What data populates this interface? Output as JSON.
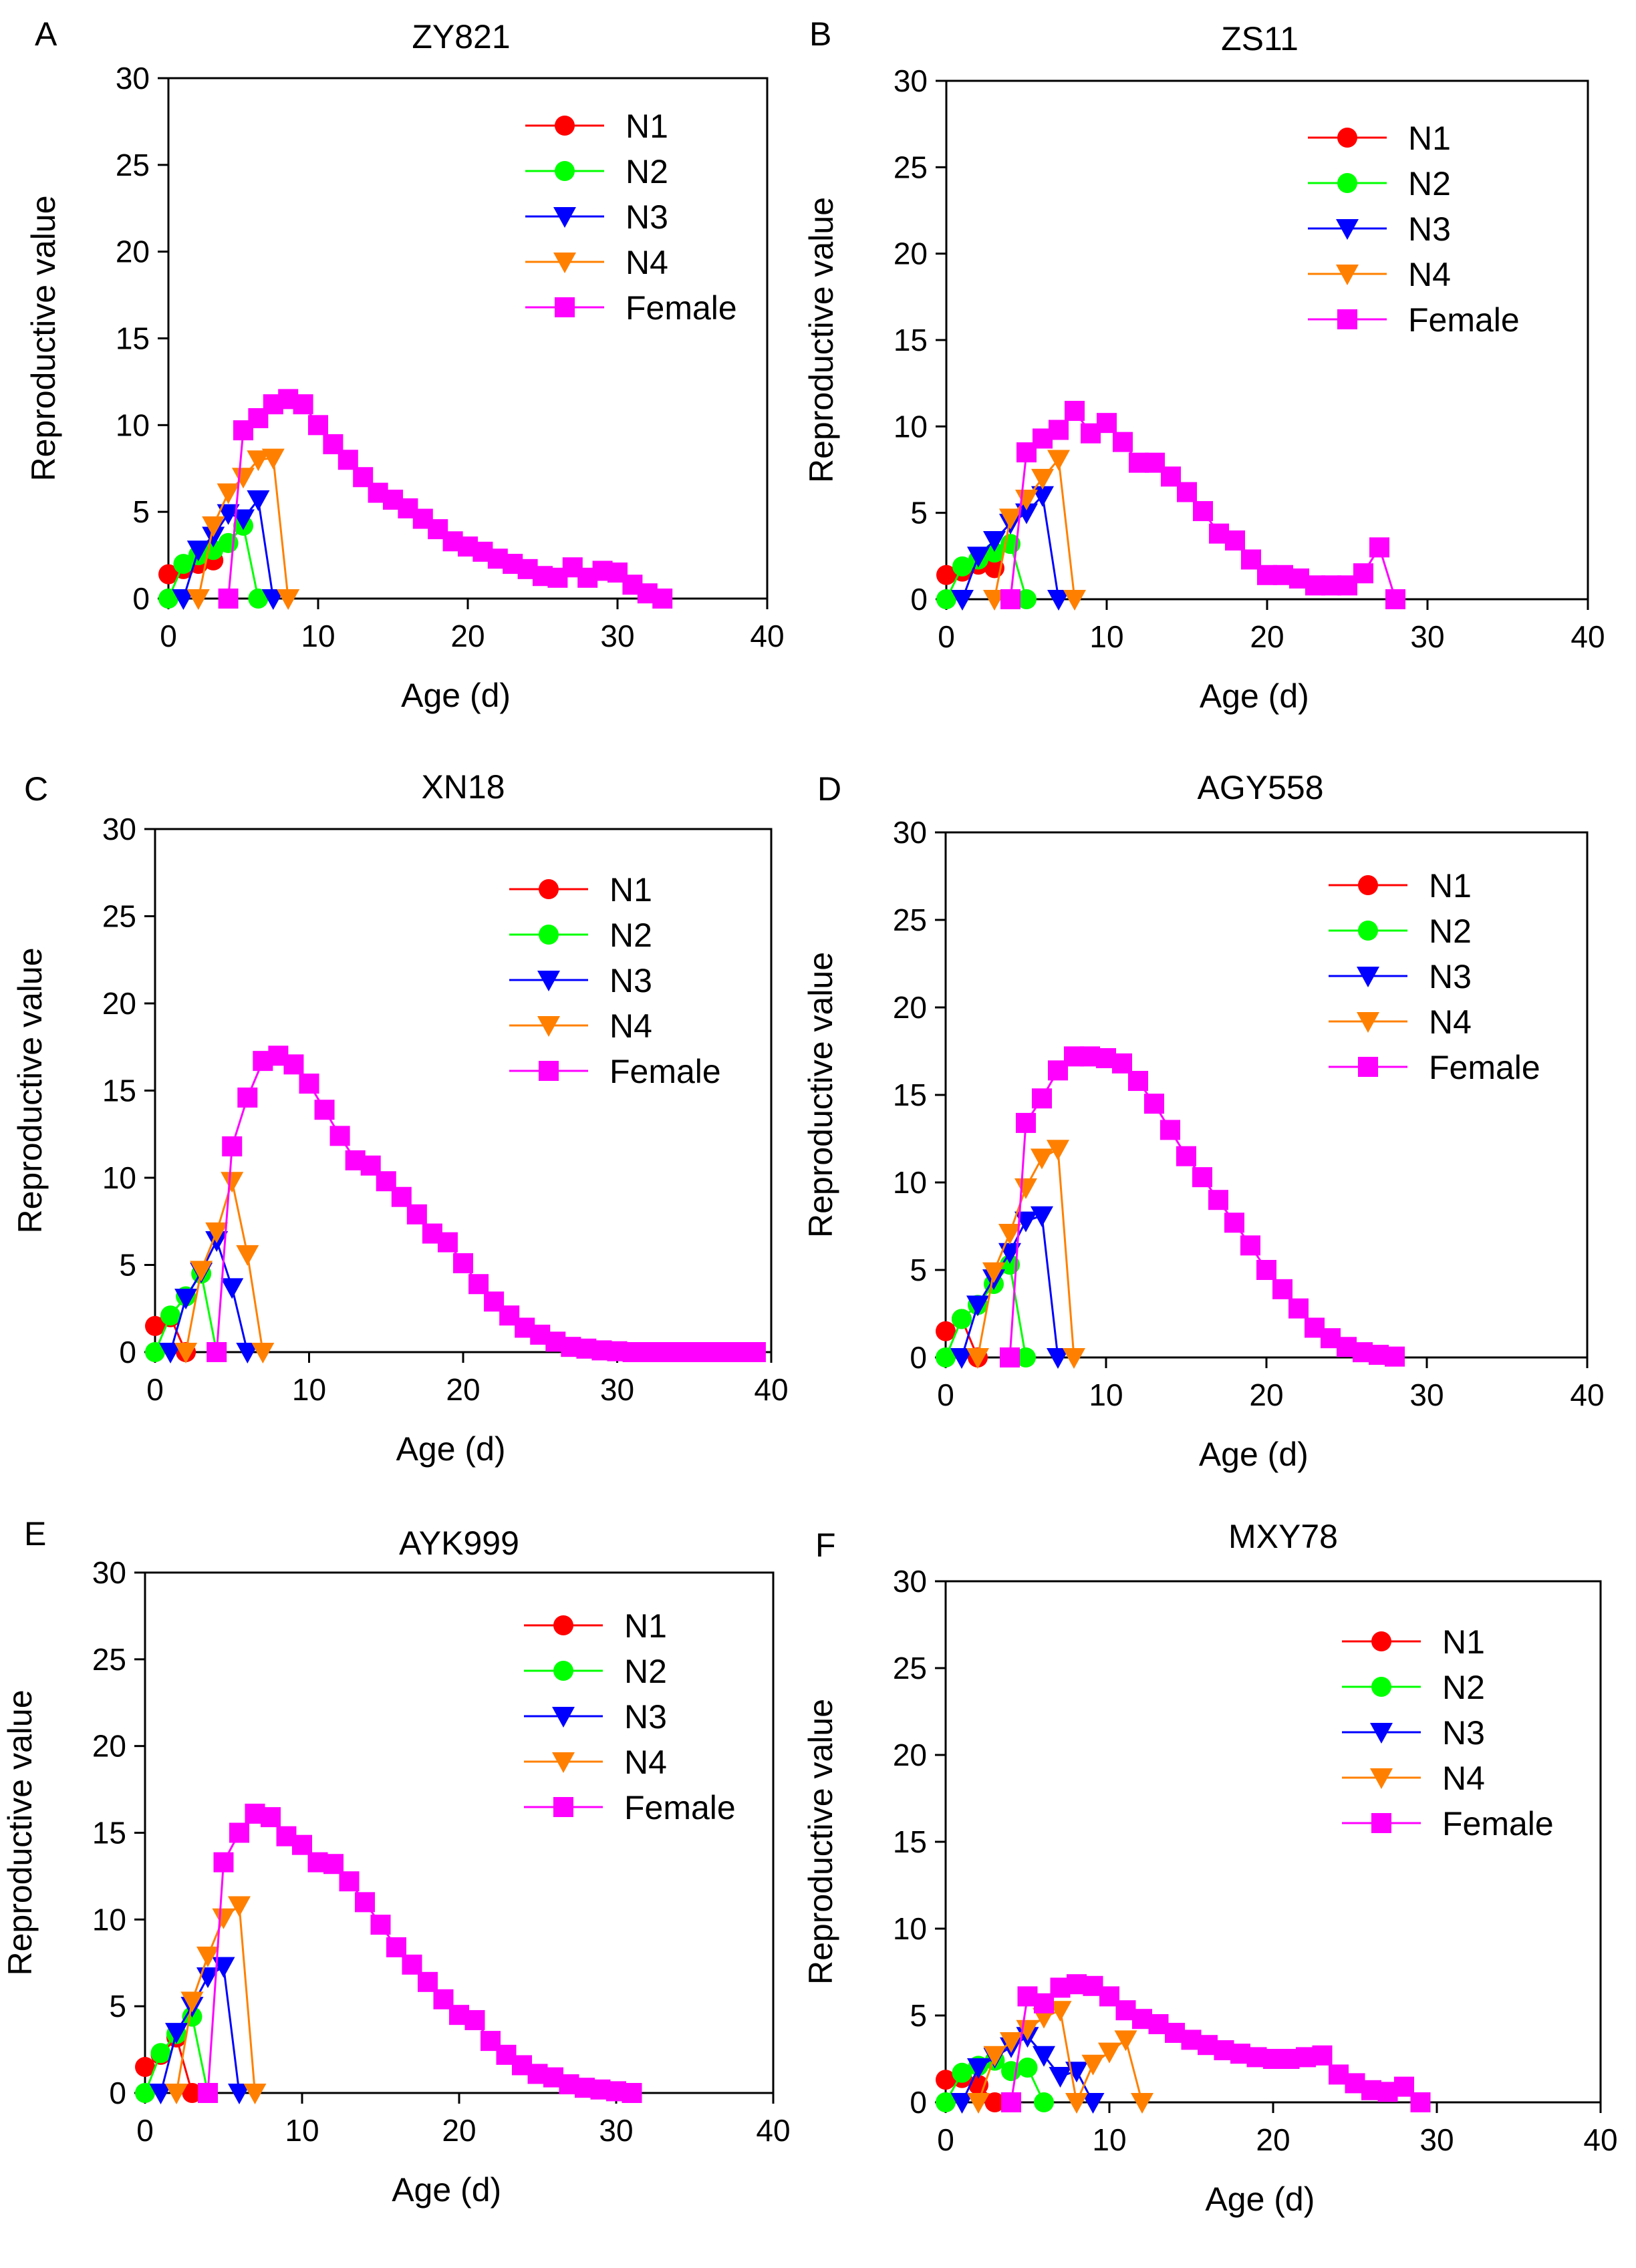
{
  "colors": {
    "N1": "#ff0000",
    "N2": "#00ff00",
    "N3": "#0000ff",
    "N4": "#ff8000",
    "Female": "#ff00ff"
  },
  "chart_data": [
    {
      "panel": "A",
      "title": "ZY821",
      "type": "line",
      "xlabel": "Age (d)",
      "ylabel": "Reproductive value",
      "xlim": [
        0,
        40
      ],
      "ylim": [
        0,
        30
      ],
      "xticks": [
        0,
        10,
        20,
        30,
        40
      ],
      "yticks": [
        0,
        5,
        10,
        15,
        20,
        25,
        30
      ],
      "legend_position": "top-right",
      "series": [
        {
          "name": "N1",
          "marker": "circle",
          "x": [
            0,
            1,
            2,
            3
          ],
          "y": [
            1.4,
            1.7,
            2.0,
            2.2
          ]
        },
        {
          "name": "N2",
          "marker": "circle",
          "x": [
            0,
            1,
            2,
            3,
            4,
            5,
            6
          ],
          "y": [
            0,
            2.0,
            2.5,
            2.8,
            3.2,
            4.2,
            0
          ]
        },
        {
          "name": "N3",
          "marker": "triangle-down",
          "x": [
            1,
            2,
            3,
            4,
            5,
            6,
            7
          ],
          "y": [
            0,
            2.8,
            3.6,
            4.9,
            4.6,
            5.7,
            0
          ]
        },
        {
          "name": "N4",
          "marker": "triangle-down",
          "x": [
            2,
            3,
            4,
            5,
            6,
            7,
            8
          ],
          "y": [
            0,
            4.2,
            6.1,
            7.0,
            8.0,
            8.1,
            0
          ]
        },
        {
          "name": "Female",
          "marker": "square",
          "x": [
            4,
            5,
            6,
            7,
            8,
            9,
            10,
            11,
            12,
            13,
            14,
            15,
            16,
            17,
            18,
            19,
            20,
            21,
            22,
            23,
            24,
            25,
            26,
            27,
            28,
            29,
            30,
            31,
            32,
            33
          ],
          "y": [
            0,
            9.7,
            10.4,
            11.2,
            11.5,
            11.2,
            10.0,
            8.9,
            8.0,
            7.0,
            6.1,
            5.7,
            5.2,
            4.6,
            4.0,
            3.3,
            3.0,
            2.7,
            2.3,
            2.0,
            1.7,
            1.3,
            1.2,
            1.8,
            1.2,
            1.6,
            1.5,
            0.8,
            0.3,
            0
          ]
        }
      ]
    },
    {
      "panel": "B",
      "title": "ZS11",
      "type": "line",
      "xlabel": "Age (d)",
      "ylabel": "Reproductive value",
      "xlim": [
        0,
        40
      ],
      "ylim": [
        0,
        30
      ],
      "xticks": [
        0,
        10,
        20,
        30,
        40
      ],
      "yticks": [
        0,
        5,
        10,
        15,
        20,
        25,
        30
      ],
      "legend_position": "top-right",
      "series": [
        {
          "name": "N1",
          "marker": "circle",
          "x": [
            0,
            1,
            2,
            3
          ],
          "y": [
            1.4,
            1.6,
            2.0,
            1.8
          ]
        },
        {
          "name": "N2",
          "marker": "circle",
          "x": [
            0,
            1,
            2,
            3,
            4,
            5
          ],
          "y": [
            0,
            1.9,
            2.3,
            2.7,
            3.2,
            0
          ]
        },
        {
          "name": "N3",
          "marker": "triangle-down",
          "x": [
            1,
            2,
            3,
            4,
            5,
            6,
            7
          ],
          "y": [
            0,
            2.5,
            3.4,
            4.4,
            5.0,
            6.0,
            0
          ]
        },
        {
          "name": "N4",
          "marker": "triangle-down",
          "x": [
            3,
            4,
            5,
            6,
            7,
            8
          ],
          "y": [
            0,
            4.7,
            5.8,
            7.0,
            8.1,
            0
          ]
        },
        {
          "name": "Female",
          "marker": "square",
          "x": [
            4,
            5,
            6,
            7,
            8,
            9,
            10,
            11,
            12,
            13,
            14,
            15,
            16,
            17,
            18,
            19,
            20,
            21,
            22,
            23,
            24,
            25,
            26,
            27,
            28
          ],
          "y": [
            0,
            8.5,
            9.3,
            9.8,
            10.9,
            9.6,
            10.2,
            9.1,
            7.9,
            7.9,
            7.1,
            6.2,
            5.1,
            3.8,
            3.4,
            2.3,
            1.4,
            1.4,
            1.2,
            0.8,
            0.8,
            0.8,
            1.5,
            3.0,
            0
          ]
        }
      ]
    },
    {
      "panel": "C",
      "title": "XN18",
      "type": "line",
      "xlabel": "Age (d)",
      "ylabel": "Reproductive value",
      "xlim": [
        0,
        40
      ],
      "ylim": [
        0,
        30
      ],
      "xticks": [
        0,
        10,
        20,
        30,
        40
      ],
      "yticks": [
        0,
        5,
        10,
        15,
        20,
        25,
        30
      ],
      "legend_position": "top-right",
      "series": [
        {
          "name": "N1",
          "marker": "circle",
          "x": [
            0,
            1,
            2
          ],
          "y": [
            1.5,
            2.0,
            0
          ]
        },
        {
          "name": "N2",
          "marker": "circle",
          "x": [
            0,
            1,
            2,
            3,
            4
          ],
          "y": [
            0,
            2.1,
            3.2,
            4.5,
            0
          ]
        },
        {
          "name": "N3",
          "marker": "triangle-down",
          "x": [
            1,
            2,
            3,
            4,
            5,
            6
          ],
          "y": [
            0,
            3.1,
            4.6,
            6.4,
            3.7,
            0
          ]
        },
        {
          "name": "N4",
          "marker": "triangle-down",
          "x": [
            2,
            3,
            4,
            5,
            6,
            7
          ],
          "y": [
            0,
            4.7,
            6.9,
            9.8,
            5.6,
            0
          ]
        },
        {
          "name": "Female",
          "marker": "square",
          "x": [
            4,
            5,
            6,
            7,
            8,
            9,
            10,
            11,
            12,
            13,
            14,
            15,
            16,
            17,
            18,
            19,
            20,
            21,
            22,
            23,
            24,
            25,
            26,
            27,
            28,
            29,
            30,
            31,
            32,
            33,
            34,
            35,
            36,
            37,
            38,
            39
          ],
          "y": [
            0,
            11.8,
            14.6,
            16.7,
            17.0,
            16.5,
            15.4,
            13.9,
            12.4,
            11.0,
            10.7,
            9.8,
            8.9,
            7.9,
            6.8,
            6.3,
            5.1,
            3.9,
            2.9,
            2.1,
            1.4,
            1.0,
            0.6,
            0.3,
            0.2,
            0.1,
            0.05,
            0,
            0,
            0,
            0,
            0,
            0,
            0,
            0,
            0
          ]
        }
      ]
    },
    {
      "panel": "D",
      "title": "AGY558",
      "type": "line",
      "xlabel": "Age (d)",
      "ylabel": "Reproductive value",
      "xlim": [
        0,
        40
      ],
      "ylim": [
        0,
        30
      ],
      "xticks": [
        0,
        10,
        20,
        30,
        40
      ],
      "yticks": [
        0,
        5,
        10,
        15,
        20,
        25,
        30
      ],
      "legend_position": "top-right",
      "series": [
        {
          "name": "N1",
          "marker": "circle",
          "x": [
            0,
            1,
            2
          ],
          "y": [
            1.5,
            2.2,
            0
          ]
        },
        {
          "name": "N2",
          "marker": "circle",
          "x": [
            0,
            1,
            2,
            3,
            4,
            5
          ],
          "y": [
            0,
            2.2,
            3.0,
            4.2,
            5.3,
            0
          ]
        },
        {
          "name": "N3",
          "marker": "triangle-down",
          "x": [
            1,
            2,
            3,
            4,
            5,
            6,
            7
          ],
          "y": [
            0,
            3.0,
            4.5,
            6.0,
            7.8,
            8.1,
            0
          ]
        },
        {
          "name": "N4",
          "marker": "triangle-down",
          "x": [
            2,
            3,
            4,
            5,
            6,
            7,
            8
          ],
          "y": [
            0,
            4.9,
            7.1,
            9.7,
            11.4,
            11.9,
            0
          ]
        },
        {
          "name": "Female",
          "marker": "square",
          "x": [
            4,
            5,
            6,
            7,
            8,
            9,
            10,
            11,
            12,
            13,
            14,
            15,
            16,
            17,
            18,
            19,
            20,
            21,
            22,
            23,
            24,
            25,
            26,
            27,
            28
          ],
          "y": [
            0,
            13.4,
            14.8,
            16.4,
            17.2,
            17.2,
            17.1,
            16.8,
            15.8,
            14.5,
            13.0,
            11.5,
            10.3,
            9.0,
            7.7,
            6.4,
            5.0,
            3.9,
            2.8,
            1.7,
            1.1,
            0.6,
            0.3,
            0.15,
            0.05
          ]
        }
      ]
    },
    {
      "panel": "E",
      "title": "AYK999",
      "type": "line",
      "xlabel": "Age (d)",
      "ylabel": "Reproductive value",
      "xlim": [
        0,
        40
      ],
      "ylim": [
        0,
        30
      ],
      "xticks": [
        0,
        10,
        20,
        30,
        40
      ],
      "yticks": [
        0,
        5,
        10,
        15,
        20,
        25,
        30
      ],
      "legend_position": "top-right",
      "series": [
        {
          "name": "N1",
          "marker": "circle",
          "x": [
            0,
            1,
            2,
            3
          ],
          "y": [
            1.5,
            2.2,
            3.2,
            0
          ]
        },
        {
          "name": "N2",
          "marker": "circle",
          "x": [
            0,
            1,
            2,
            3,
            4
          ],
          "y": [
            0,
            2.3,
            3.4,
            4.4,
            0
          ]
        },
        {
          "name": "N3",
          "marker": "triangle-down",
          "x": [
            1,
            2,
            3,
            4,
            5,
            6
          ],
          "y": [
            0,
            3.5,
            5.0,
            6.7,
            7.3,
            0
          ]
        },
        {
          "name": "N4",
          "marker": "triangle-down",
          "x": [
            2,
            3,
            4,
            5,
            6,
            7
          ],
          "y": [
            0,
            5.3,
            7.9,
            10.1,
            10.8,
            0
          ]
        },
        {
          "name": "Female",
          "marker": "square",
          "x": [
            4,
            5,
            6,
            7,
            8,
            9,
            10,
            11,
            12,
            13,
            14,
            15,
            16,
            17,
            18,
            19,
            20,
            21,
            22,
            23,
            24,
            25,
            26,
            27,
            28,
            29,
            30,
            31
          ],
          "y": [
            0,
            13.3,
            15.0,
            16.1,
            15.9,
            14.8,
            14.3,
            13.3,
            13.2,
            12.2,
            11.0,
            9.7,
            8.4,
            7.4,
            6.4,
            5.4,
            4.5,
            4.2,
            3.0,
            2.2,
            1.6,
            1.1,
            0.9,
            0.5,
            0.3,
            0.2,
            0.1,
            0
          ]
        }
      ]
    },
    {
      "panel": "F",
      "title": "MXY78",
      "type": "line",
      "xlabel": "Age (d)",
      "ylabel": "Reproductive value",
      "xlim": [
        0,
        40
      ],
      "ylim": [
        0,
        30
      ],
      "xticks": [
        0,
        10,
        20,
        30,
        40
      ],
      "yticks": [
        0,
        5,
        10,
        15,
        20,
        25,
        30
      ],
      "legend_position": "top-right",
      "series": [
        {
          "name": "N1",
          "marker": "circle",
          "x": [
            0,
            1,
            2,
            3
          ],
          "y": [
            1.3,
            1.4,
            1.0,
            0
          ]
        },
        {
          "name": "N2",
          "marker": "circle",
          "x": [
            0,
            1,
            2,
            3,
            4,
            5,
            6
          ],
          "y": [
            0,
            1.7,
            2.1,
            2.4,
            1.8,
            2.0,
            0
          ]
        },
        {
          "name": "N3",
          "marker": "triangle-down",
          "x": [
            1,
            2,
            3,
            4,
            5,
            6,
            7,
            8,
            9
          ],
          "y": [
            0,
            2.0,
            2.6,
            3.2,
            3.8,
            2.7,
            1.5,
            1.8,
            0
          ]
        },
        {
          "name": "N4",
          "marker": "triangle-down",
          "x": [
            2,
            3,
            4,
            5,
            6,
            7,
            8,
            9,
            10,
            11,
            12
          ],
          "y": [
            0,
            2.7,
            3.5,
            4.2,
            4.9,
            5.3,
            0,
            2.2,
            2.9,
            3.6,
            0
          ]
        },
        {
          "name": "Female",
          "marker": "square",
          "x": [
            4,
            5,
            6,
            7,
            8,
            9,
            10,
            11,
            12,
            13,
            14,
            15,
            16,
            17,
            18,
            19,
            20,
            21,
            22,
            23,
            24,
            25,
            26,
            27,
            28,
            29
          ],
          "y": [
            0,
            6.1,
            5.7,
            6.6,
            6.8,
            6.7,
            6.1,
            5.3,
            4.8,
            4.5,
            4.0,
            3.6,
            3.3,
            3.0,
            2.8,
            2.6,
            2.5,
            2.5,
            2.6,
            2.7,
            1.6,
            1.1,
            0.7,
            0.6,
            0.9,
            0
          ]
        }
      ]
    }
  ]
}
